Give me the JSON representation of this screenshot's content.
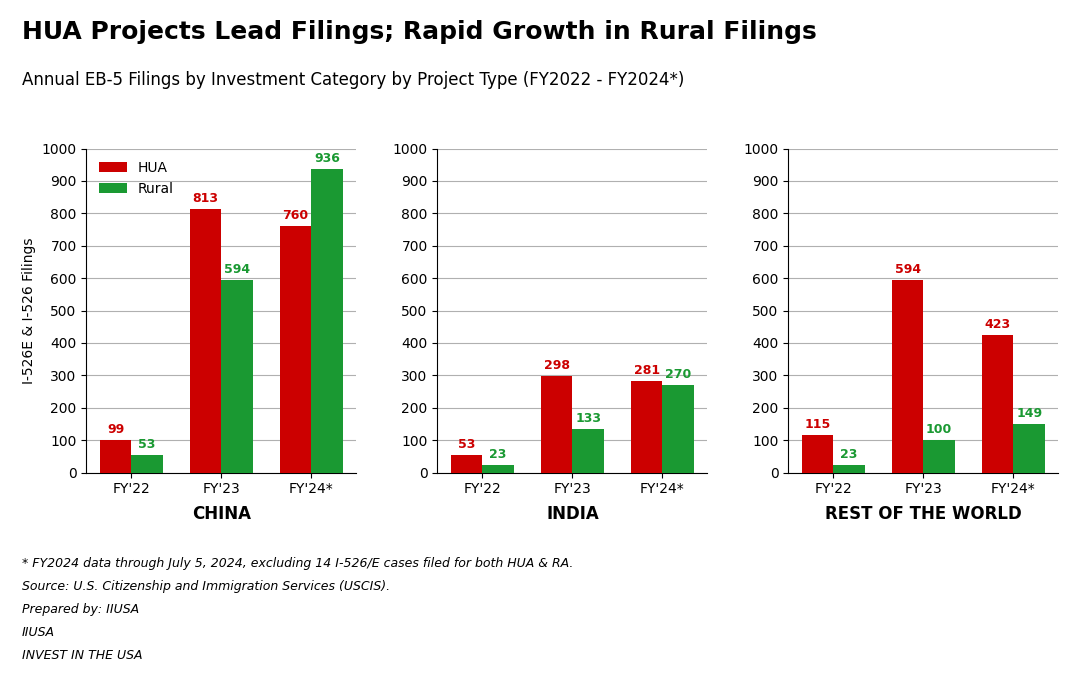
{
  "title": "HUA Projects Lead Filings; Rapid Growth in Rural Filings",
  "subtitle": "Annual EB-5 Filings by Investment Category by Project Type (FY2022 - FY2024*)",
  "annotations": [
    "* FY2024 data through July 5, 2024, excluding 14 I-526/E cases filed for both HUA & RA.",
    "Source: U.S. Citizenship and Immigration Services (USCIS).",
    "Prepared by: IIUSA",
    "IIUSA",
    "INVEST IN THE USA"
  ],
  "chart_data": [
    {
      "type": "bar",
      "xlabel": "CHINA",
      "ylabel": "I-526E & I-526 Filings",
      "categories": [
        "FY'22",
        "FY'23",
        "FY'24*"
      ],
      "series": [
        {
          "name": "HUA",
          "color": "#CC0000",
          "values": [
            99,
            813,
            760
          ]
        },
        {
          "name": "Rural",
          "color": "#1a9932",
          "values": [
            53,
            594,
            936
          ]
        }
      ],
      "ylim": [
        0,
        1000
      ],
      "yticks": [
        0,
        100,
        200,
        300,
        400,
        500,
        600,
        700,
        800,
        900,
        1000
      ],
      "grid": true,
      "data_labels": true,
      "legend": "upper left"
    },
    {
      "type": "bar",
      "xlabel": "INDIA",
      "categories": [
        "FY'22",
        "FY'23",
        "FY'24*"
      ],
      "series": [
        {
          "name": "HUA",
          "color": "#CC0000",
          "values": [
            53,
            298,
            281
          ]
        },
        {
          "name": "Rural",
          "color": "#1a9932",
          "values": [
            23,
            133,
            270
          ]
        }
      ],
      "ylim": [
        0,
        1000
      ],
      "yticks": [
        0,
        100,
        200,
        300,
        400,
        500,
        600,
        700,
        800,
        900,
        1000
      ],
      "grid": true,
      "data_labels": true
    },
    {
      "type": "bar",
      "xlabel": "REST OF THE WORLD",
      "categories": [
        "FY'22",
        "FY'23",
        "FY'24*"
      ],
      "series": [
        {
          "name": "HUA",
          "color": "#CC0000",
          "values": [
            115,
            594,
            423
          ]
        },
        {
          "name": "Rural",
          "color": "#1a9932",
          "values": [
            23,
            100,
            149
          ]
        }
      ],
      "ylim": [
        0,
        1000
      ],
      "yticks": [
        0,
        100,
        200,
        300,
        400,
        500,
        600,
        700,
        800,
        900,
        1000
      ],
      "grid": true,
      "data_labels": true
    }
  ]
}
